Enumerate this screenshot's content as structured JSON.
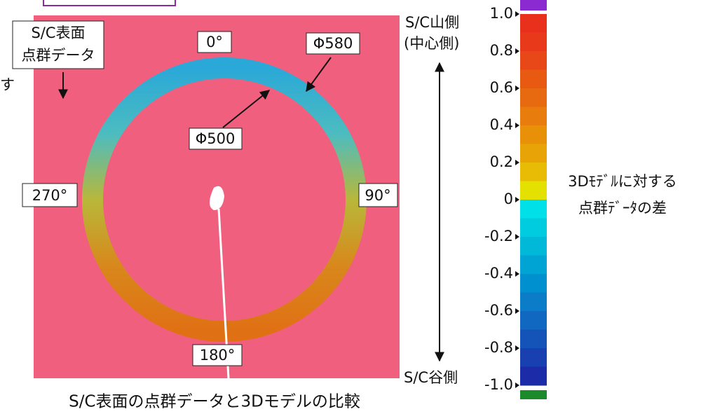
{
  "labels": {
    "surface": [
      "S/C表面",
      "点群データ"
    ],
    "deg0": "0°",
    "phi580": "Φ580",
    "phi500": "Φ500",
    "deg270": "270°",
    "deg90": "90°",
    "deg180": "180°",
    "top_side": [
      "S/C山側",
      "(中心側)"
    ],
    "bottom_side": "S/C谷側",
    "cropped_text": "す"
  },
  "colorbar": {
    "title": [
      "3Dﾓﾃﾞﾙに対する",
      "点群ﾃﾞｰﾀの差"
    ],
    "lim": [
      -1,
      1
    ],
    "ticks": [
      {
        "value": 1,
        "label": "1.0"
      },
      0.8,
      0.6,
      0.4,
      0.2,
      0,
      -0.2,
      -0.4,
      -0.6,
      -0.8,
      {
        "value": -1,
        "label": "-1.0"
      }
    ],
    "colors": [
      "#e8301c",
      "#e83a1a",
      "#e84818",
      "#e85a12",
      "#e86a10",
      "#e87c0c",
      "#e89008",
      "#e8a406",
      "#e8bc04",
      "#e4e000",
      "#00e0e8",
      "#00ccdf",
      "#00b8d8",
      "#00a4d4",
      "#0090d0",
      "#0a7cc8",
      "#1068c0",
      "#1454b8",
      "#1840b0",
      "#1c2ca8"
    ]
  },
  "caption": "S/C表面の点群データと3Dモデルの比較"
}
